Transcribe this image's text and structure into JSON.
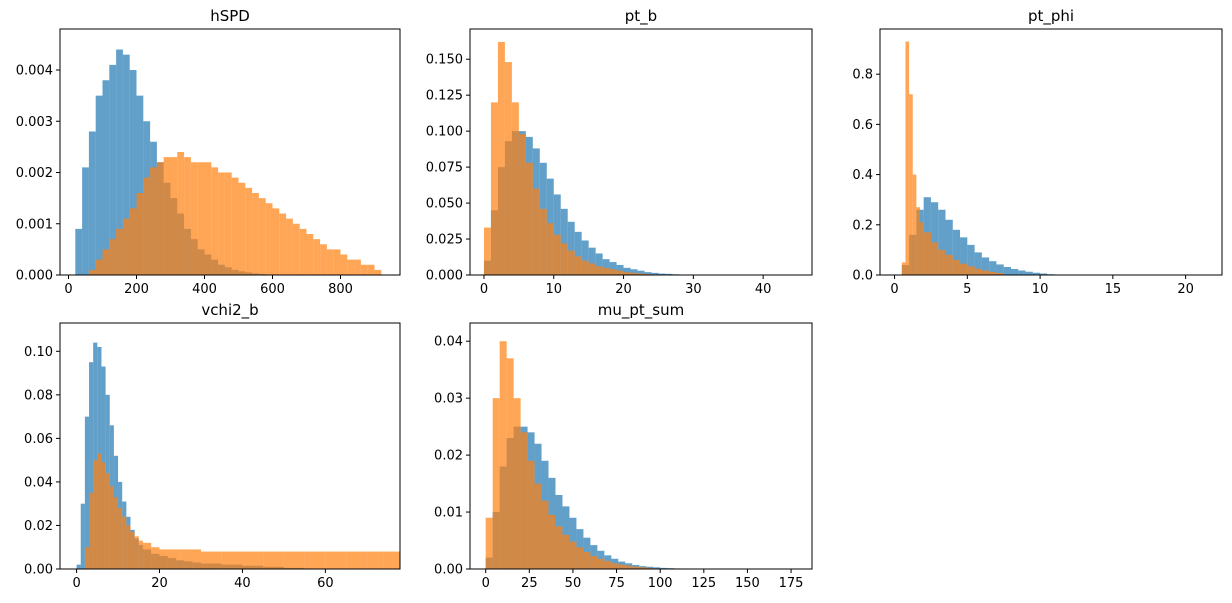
{
  "figure": {
    "colors": {
      "series_blue": "#1f77b4",
      "series_orange": "#ff7f0e",
      "overlap_note_alpha": "0.7"
    }
  },
  "chart_data": [
    {
      "type": "histogram",
      "title": "hSPD",
      "xlim": [
        -25,
        975
      ],
      "ylim": [
        0,
        0.0048
      ],
      "xticks": [
        0,
        200,
        400,
        600,
        800
      ],
      "xtick_labels": [
        "0",
        "200",
        "400",
        "600",
        "800"
      ],
      "yticks": [
        0,
        0.001,
        0.002,
        0.003,
        0.004
      ],
      "ytick_labels": [
        "0.000",
        "0.001",
        "0.002",
        "0.003",
        "0.004"
      ],
      "series": [
        {
          "color": "#1f77b4",
          "x": [
            20,
            40,
            60,
            80,
            100,
            120,
            140,
            160,
            180,
            200,
            220,
            240,
            260,
            280,
            300,
            320,
            340,
            360,
            380,
            400,
            420,
            440,
            460,
            480,
            500,
            520,
            540,
            560,
            580,
            600,
            620
          ],
          "y": [
            0.0009,
            0.0021,
            0.0028,
            0.0035,
            0.0038,
            0.0041,
            0.0044,
            0.0043,
            0.004,
            0.0035,
            0.003,
            0.0026,
            0.0022,
            0.0018,
            0.0015,
            0.0012,
            0.0009,
            0.0007,
            0.0005,
            0.0004,
            0.0003,
            0.0002,
            0.00015,
            0.0001,
            7e-05,
            5e-05,
            3e-05,
            2e-05,
            1e-05,
            1e-05,
            0.0
          ]
        },
        {
          "color": "#ff7f0e",
          "x": [
            60,
            80,
            100,
            120,
            140,
            160,
            180,
            200,
            220,
            240,
            260,
            280,
            300,
            320,
            340,
            360,
            380,
            400,
            420,
            440,
            460,
            480,
            500,
            520,
            540,
            560,
            580,
            600,
            620,
            640,
            660,
            680,
            700,
            720,
            740,
            760,
            780,
            800,
            820,
            840,
            860,
            880,
            900
          ],
          "y": [
            0.0001,
            0.0003,
            0.0005,
            0.0007,
            0.0009,
            0.0011,
            0.0013,
            0.0016,
            0.0019,
            0.0021,
            0.0022,
            0.0023,
            0.0023,
            0.0024,
            0.0023,
            0.0022,
            0.0022,
            0.0022,
            0.0021,
            0.002,
            0.002,
            0.0019,
            0.0018,
            0.0017,
            0.0016,
            0.0015,
            0.0014,
            0.0013,
            0.0012,
            0.0011,
            0.001,
            0.0009,
            0.0008,
            0.0007,
            0.0006,
            0.0005,
            0.0005,
            0.0004,
            0.0003,
            0.0003,
            0.0002,
            0.0002,
            0.0001
          ]
        }
      ]
    },
    {
      "type": "histogram",
      "title": "pt_b",
      "xlim": [
        -2,
        47
      ],
      "ylim": [
        0,
        0.171
      ],
      "xticks": [
        0,
        10,
        20,
        30,
        40
      ],
      "xtick_labels": [
        "0",
        "10",
        "20",
        "30",
        "40"
      ],
      "yticks": [
        0,
        0.025,
        0.05,
        0.075,
        0.1,
        0.125,
        0.15
      ],
      "ytick_labels": [
        "0.000",
        "0.025",
        "0.050",
        "0.075",
        "0.100",
        "0.125",
        "0.150"
      ],
      "series": [
        {
          "color": "#1f77b4",
          "x": [
            0,
            1,
            2,
            3,
            4,
            5,
            6,
            7,
            8,
            9,
            10,
            11,
            12,
            13,
            14,
            15,
            16,
            17,
            18,
            19,
            20,
            21,
            22,
            23,
            24,
            25,
            26,
            27,
            28,
            29,
            30
          ],
          "y": [
            0.01,
            0.045,
            0.075,
            0.093,
            0.1,
            0.1,
            0.096,
            0.088,
            0.078,
            0.067,
            0.056,
            0.046,
            0.037,
            0.03,
            0.024,
            0.019,
            0.015,
            0.011,
            0.009,
            0.007,
            0.005,
            0.004,
            0.003,
            0.002,
            0.0015,
            0.001,
            0.0008,
            0.0005,
            0.0003,
            0.0002,
            0.0001
          ]
        },
        {
          "color": "#ff7f0e",
          "x": [
            0,
            1,
            2,
            3,
            4,
            5,
            6,
            7,
            8,
            9,
            10,
            11,
            12,
            13,
            14,
            15,
            16,
            17,
            18,
            19,
            20,
            21,
            22,
            23,
            24,
            25
          ],
          "y": [
            0.033,
            0.12,
            0.162,
            0.148,
            0.12,
            0.098,
            0.078,
            0.06,
            0.046,
            0.036,
            0.028,
            0.022,
            0.017,
            0.013,
            0.01,
            0.008,
            0.006,
            0.005,
            0.004,
            0.003,
            0.002,
            0.0015,
            0.001,
            0.0007,
            0.0004,
            0.0002
          ]
        }
      ]
    },
    {
      "type": "histogram",
      "title": "pt_phi",
      "xlim": [
        -1,
        22.5
      ],
      "ylim": [
        0,
        0.98
      ],
      "xticks": [
        0,
        5,
        10,
        15,
        20
      ],
      "xtick_labels": [
        "0",
        "5",
        "10",
        "15",
        "20"
      ],
      "yticks": [
        0,
        0.2,
        0.4,
        0.6,
        0.8
      ],
      "ytick_labels": [
        "0.0",
        "0.2",
        "0.4",
        "0.6",
        "0.8"
      ],
      "series": [
        {
          "color": "#1f77b4",
          "x": [
            0.5,
            1.0,
            1.5,
            2.0,
            2.5,
            3.0,
            3.5,
            4.0,
            4.5,
            5.0,
            5.5,
            6.0,
            6.5,
            7.0,
            7.5,
            8.0,
            8.5,
            9.0,
            9.5,
            10.0,
            10.5
          ],
          "y": [
            0.04,
            0.16,
            0.26,
            0.31,
            0.29,
            0.26,
            0.22,
            0.18,
            0.15,
            0.12,
            0.09,
            0.07,
            0.055,
            0.042,
            0.032,
            0.024,
            0.018,
            0.013,
            0.009,
            0.006,
            0.003
          ]
        },
        {
          "color": "#ff7f0e",
          "x": [
            0.5,
            0.75,
            1.0,
            1.25,
            1.5,
            1.75,
            2.0,
            2.5,
            3.0,
            3.5,
            4.0,
            4.5,
            5.0,
            5.5,
            6.0,
            6.5,
            7.0
          ],
          "y": [
            0.05,
            0.93,
            0.72,
            0.4,
            0.27,
            0.21,
            0.17,
            0.13,
            0.1,
            0.08,
            0.06,
            0.045,
            0.035,
            0.025,
            0.018,
            0.012,
            0.008
          ]
        }
      ]
    },
    {
      "type": "histogram",
      "title": "vchi2_b",
      "xlim": [
        -4,
        78
      ],
      "ylim": [
        0,
        0.113
      ],
      "xticks": [
        0,
        20,
        40,
        60
      ],
      "xtick_labels": [
        "0",
        "20",
        "40",
        "60"
      ],
      "yticks": [
        0,
        0.02,
        0.04,
        0.06,
        0.08,
        0.1
      ],
      "ytick_labels": [
        "0.00",
        "0.02",
        "0.04",
        "0.06",
        "0.08",
        "0.10"
      ],
      "series": [
        {
          "color": "#1f77b4",
          "x": [
            0,
            1,
            2,
            3,
            4,
            5,
            6,
            7,
            8,
            9,
            10,
            11,
            12,
            13,
            14,
            15,
            16,
            18,
            20,
            22,
            24,
            26,
            28,
            30,
            35,
            40,
            45,
            50
          ],
          "y": [
            0.002,
            0.03,
            0.07,
            0.095,
            0.104,
            0.102,
            0.093,
            0.08,
            0.066,
            0.052,
            0.04,
            0.031,
            0.024,
            0.018,
            0.014,
            0.011,
            0.009,
            0.007,
            0.006,
            0.005,
            0.004,
            0.0035,
            0.003,
            0.0025,
            0.002,
            0.0015,
            0.001,
            0.0005
          ]
        },
        {
          "color": "#ff7f0e",
          "x": [
            2,
            3,
            4,
            5,
            6,
            7,
            8,
            9,
            10,
            11,
            12,
            13,
            14,
            15,
            16,
            18,
            20,
            25,
            30,
            35,
            40,
            45,
            50,
            55,
            60,
            65,
            70,
            74
          ],
          "y": [
            0.01,
            0.035,
            0.05,
            0.053,
            0.049,
            0.044,
            0.038,
            0.033,
            0.028,
            0.024,
            0.02,
            0.017,
            0.015,
            0.013,
            0.012,
            0.01,
            0.009,
            0.009,
            0.008,
            0.008,
            0.008,
            0.008,
            0.008,
            0.008,
            0.008,
            0.008,
            0.008,
            0.008
          ]
        }
      ]
    },
    {
      "type": "histogram",
      "title": "mu_pt_sum",
      "xlim": [
        -9,
        187
      ],
      "ylim": [
        0,
        0.0432
      ],
      "xticks": [
        0,
        25,
        50,
        75,
        100,
        125,
        150,
        175
      ],
      "xtick_labels": [
        "0",
        "25",
        "50",
        "75",
        "100",
        "125",
        "150",
        "175"
      ],
      "yticks": [
        0,
        0.01,
        0.02,
        0.03,
        0.04
      ],
      "ytick_labels": [
        "0.00",
        "0.01",
        "0.02",
        "0.03",
        "0.04"
      ],
      "series": [
        {
          "color": "#1f77b4",
          "x": [
            0,
            4,
            8,
            12,
            16,
            20,
            24,
            28,
            32,
            36,
            40,
            44,
            48,
            52,
            56,
            60,
            64,
            68,
            72,
            76,
            80,
            84,
            88,
            92,
            96,
            100,
            104,
            108,
            112,
            116
          ],
          "y": [
            0.002,
            0.01,
            0.018,
            0.023,
            0.025,
            0.025,
            0.024,
            0.022,
            0.019,
            0.016,
            0.013,
            0.011,
            0.009,
            0.007,
            0.0055,
            0.0042,
            0.0032,
            0.0024,
            0.0018,
            0.0013,
            0.001,
            0.0007,
            0.0005,
            0.0004,
            0.0003,
            0.0002,
            0.00015,
            0.0001,
            5e-05,
            2e-05
          ]
        },
        {
          "color": "#ff7f0e",
          "x": [
            0,
            4,
            8,
            12,
            16,
            20,
            24,
            28,
            32,
            36,
            40,
            44,
            48,
            52,
            56,
            60,
            64,
            68,
            72,
            76,
            80,
            84,
            88,
            92,
            96,
            100
          ],
          "y": [
            0.009,
            0.03,
            0.04,
            0.037,
            0.03,
            0.024,
            0.019,
            0.015,
            0.012,
            0.0095,
            0.0075,
            0.006,
            0.0048,
            0.0038,
            0.003,
            0.0023,
            0.0018,
            0.0014,
            0.001,
            0.0008,
            0.0006,
            0.0004,
            0.0003,
            0.0002,
            0.0001,
            5e-05
          ]
        }
      ]
    }
  ]
}
